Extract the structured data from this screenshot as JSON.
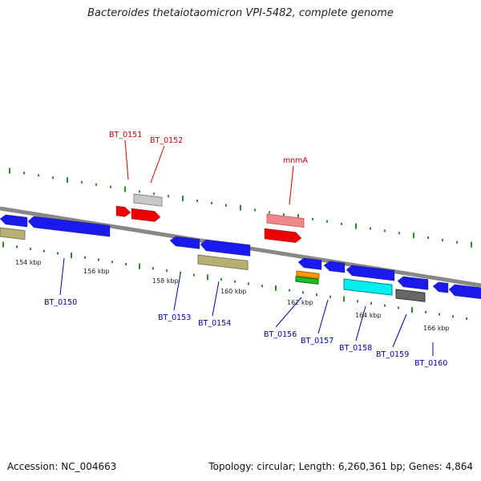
{
  "title": "Bacteroides thetaiotaomicron VPI-5482, complete genome",
  "footer": {
    "accession": "Accession: NC_004663",
    "topology": "Topology: circular; Length: 6,260,361 bp; Genes: 4,864"
  },
  "colors": {
    "backbone": "#888888",
    "tick": "#2e8b2e",
    "red_label": "#cc0000",
    "blue_label": "#0000aa",
    "blue": "#1a1aee",
    "red": "#ee0000",
    "pink": "#ee8888",
    "gray": "#c8c8c8",
    "khaki": "#b8b070",
    "dark_gray": "#666666",
    "cyan": "#00eeee",
    "orange": "#ff9900",
    "green": "#22bb22"
  },
  "scale": {
    "tick_labels": [
      "154 kbp",
      "156 kbp",
      "158 kbp",
      "160 kbp",
      "162 kbp",
      "164 kbp",
      "166 kbp"
    ]
  },
  "labels": {
    "top": [
      "BT_0151",
      "BT_0152",
      "mnmA"
    ],
    "bottom": [
      "BT_0150",
      "BT_0153",
      "BT_0154",
      "BT_0156",
      "BT_0157",
      "BT_0158",
      "BT_0159",
      "BT_0160"
    ]
  }
}
